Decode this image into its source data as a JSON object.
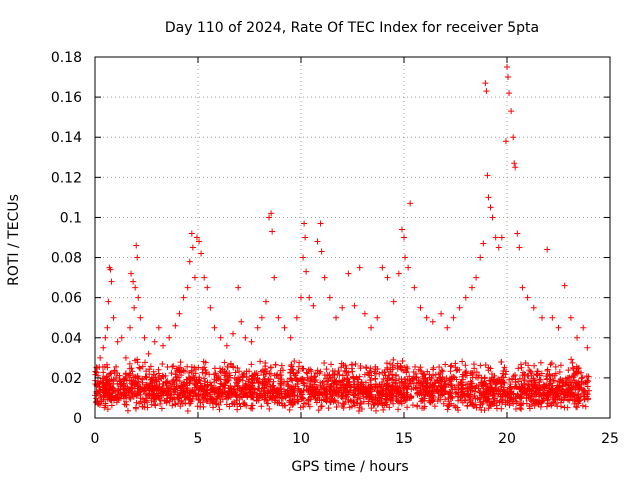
{
  "chart_data": {
    "type": "scatter",
    "title": "Day 110 of 2024, Rate Of TEC Index for receiver 5pta",
    "xlabel": "GPS time / hours",
    "ylabel": "ROTI / TECUs",
    "xlim": [
      0,
      25
    ],
    "ylim": [
      0,
      0.18
    ],
    "xticks": [
      "0",
      "5",
      "10",
      "15",
      "20",
      "25"
    ],
    "yticks": [
      "0",
      "0.02",
      "0.04",
      "0.06",
      "0.08",
      "0.1",
      "0.12",
      "0.14",
      "0.16",
      "0.18"
    ],
    "grid": true,
    "marker": "+",
    "color": "#ff0000",
    "series": [
      {
        "values": [
          [
            0.1,
            0.025
          ],
          [
            0.25,
            0.03
          ],
          [
            0.4,
            0.035
          ],
          [
            0.5,
            0.04
          ],
          [
            0.6,
            0.045
          ],
          [
            0.65,
            0.058
          ],
          [
            0.7,
            0.075
          ],
          [
            0.75,
            0.074
          ],
          [
            0.8,
            0.068
          ],
          [
            0.9,
            0.05
          ],
          [
            1.1,
            0.038
          ],
          [
            1.3,
            0.04
          ],
          [
            1.5,
            0.03
          ],
          [
            1.7,
            0.045
          ],
          [
            1.75,
            0.072
          ],
          [
            1.85,
            0.068
          ],
          [
            1.9,
            0.055
          ],
          [
            1.95,
            0.065
          ],
          [
            2.0,
            0.086
          ],
          [
            2.05,
            0.08
          ],
          [
            2.1,
            0.06
          ],
          [
            2.2,
            0.05
          ],
          [
            2.4,
            0.04
          ],
          [
            2.6,
            0.032
          ],
          [
            2.9,
            0.038
          ],
          [
            3.1,
            0.045
          ],
          [
            3.3,
            0.036
          ],
          [
            3.6,
            0.04
          ],
          [
            3.9,
            0.046
          ],
          [
            4.1,
            0.052
          ],
          [
            4.3,
            0.06
          ],
          [
            4.5,
            0.065
          ],
          [
            4.6,
            0.078
          ],
          [
            4.7,
            0.092
          ],
          [
            4.75,
            0.085
          ],
          [
            4.85,
            0.07
          ],
          [
            4.95,
            0.09
          ],
          [
            5.05,
            0.088
          ],
          [
            5.15,
            0.082
          ],
          [
            5.3,
            0.07
          ],
          [
            5.45,
            0.065
          ],
          [
            5.6,
            0.055
          ],
          [
            5.8,
            0.045
          ],
          [
            6.1,
            0.04
          ],
          [
            6.4,
            0.036
          ],
          [
            6.7,
            0.042
          ],
          [
            6.95,
            0.065
          ],
          [
            7.1,
            0.048
          ],
          [
            7.3,
            0.04
          ],
          [
            7.6,
            0.038
          ],
          [
            7.9,
            0.045
          ],
          [
            8.1,
            0.05
          ],
          [
            8.3,
            0.058
          ],
          [
            8.45,
            0.1
          ],
          [
            8.55,
            0.102
          ],
          [
            8.6,
            0.093
          ],
          [
            8.7,
            0.07
          ],
          [
            8.9,
            0.05
          ],
          [
            9.2,
            0.045
          ],
          [
            9.5,
            0.04
          ],
          [
            9.8,
            0.05
          ],
          [
            10.0,
            0.06
          ],
          [
            10.1,
            0.08
          ],
          [
            10.15,
            0.097
          ],
          [
            10.2,
            0.09
          ],
          [
            10.25,
            0.073
          ],
          [
            10.4,
            0.06
          ],
          [
            10.6,
            0.056
          ],
          [
            10.8,
            0.088
          ],
          [
            10.95,
            0.097
          ],
          [
            11.0,
            0.083
          ],
          [
            11.15,
            0.07
          ],
          [
            11.4,
            0.06
          ],
          [
            11.7,
            0.05
          ],
          [
            12.0,
            0.055
          ],
          [
            12.3,
            0.072
          ],
          [
            12.6,
            0.056
          ],
          [
            12.85,
            0.075
          ],
          [
            13.1,
            0.052
          ],
          [
            13.4,
            0.045
          ],
          [
            13.7,
            0.05
          ],
          [
            13.95,
            0.075
          ],
          [
            14.2,
            0.07
          ],
          [
            14.5,
            0.058
          ],
          [
            14.75,
            0.072
          ],
          [
            14.9,
            0.094
          ],
          [
            15.0,
            0.09
          ],
          [
            15.05,
            0.08
          ],
          [
            15.2,
            0.075
          ],
          [
            15.3,
            0.107
          ],
          [
            15.5,
            0.065
          ],
          [
            15.8,
            0.055
          ],
          [
            16.1,
            0.05
          ],
          [
            16.4,
            0.048
          ],
          [
            16.8,
            0.052
          ],
          [
            17.1,
            0.045
          ],
          [
            17.4,
            0.05
          ],
          [
            17.7,
            0.055
          ],
          [
            18.0,
            0.06
          ],
          [
            18.3,
            0.065
          ],
          [
            18.5,
            0.07
          ],
          [
            18.7,
            0.08
          ],
          [
            18.85,
            0.087
          ],
          [
            18.95,
            0.167
          ],
          [
            19.0,
            0.163
          ],
          [
            19.05,
            0.121
          ],
          [
            19.1,
            0.11
          ],
          [
            19.2,
            0.105
          ],
          [
            19.3,
            0.1
          ],
          [
            19.45,
            0.09
          ],
          [
            19.6,
            0.085
          ],
          [
            19.75,
            0.09
          ],
          [
            19.95,
            0.138
          ],
          [
            20.0,
            0.175
          ],
          [
            20.05,
            0.17
          ],
          [
            20.1,
            0.162
          ],
          [
            20.2,
            0.153
          ],
          [
            20.3,
            0.14
          ],
          [
            20.35,
            0.127
          ],
          [
            20.4,
            0.125
          ],
          [
            20.5,
            0.092
          ],
          [
            20.6,
            0.085
          ],
          [
            20.75,
            0.065
          ],
          [
            21.0,
            0.06
          ],
          [
            21.3,
            0.055
          ],
          [
            21.7,
            0.05
          ],
          [
            21.95,
            0.084
          ],
          [
            22.2,
            0.05
          ],
          [
            22.5,
            0.045
          ],
          [
            22.8,
            0.066
          ],
          [
            23.1,
            0.05
          ],
          [
            23.4,
            0.04
          ],
          [
            23.7,
            0.045
          ],
          [
            23.9,
            0.035
          ]
        ]
      }
    ],
    "baseline_band": {
      "x": [
        0,
        24
      ],
      "y_low": [
        0.003,
        0.012
      ],
      "y_high": [
        0.014,
        0.03
      ]
    }
  }
}
